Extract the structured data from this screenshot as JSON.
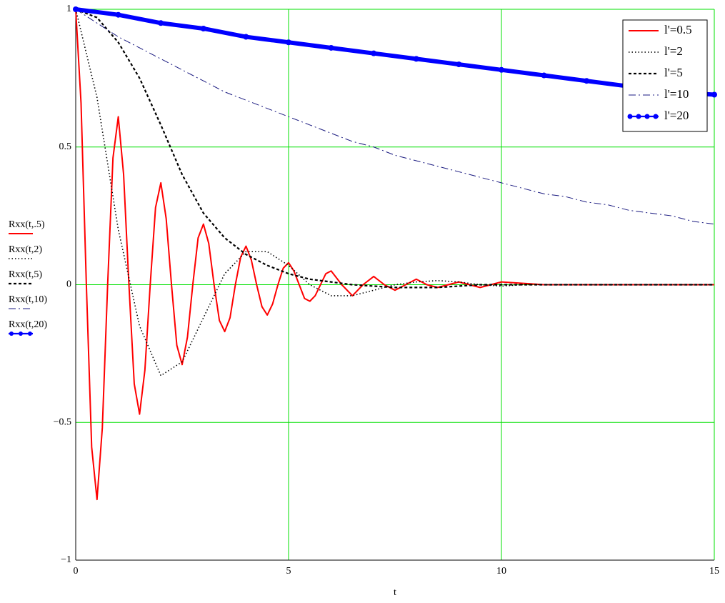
{
  "chart_data": {
    "type": "line",
    "x_label": "t",
    "xlim": [
      0,
      15
    ],
    "xticks": [
      0,
      5,
      10,
      15
    ],
    "ylim": [
      -1,
      1
    ],
    "yticks": [
      {
        "value": -1,
        "label": "−1"
      },
      {
        "value": -0.5,
        "label": "−0.5"
      },
      0,
      0.5,
      1
    ],
    "grid": true,
    "grid_color": "#00e000",
    "legend": "upper right",
    "series": [
      {
        "name": "l'=0.5",
        "expression": "Rxx(t,.5)",
        "color": "#ff0000",
        "line_style": "solid",
        "width": 2,
        "x": [
          0,
          0.125,
          0.25,
          0.375,
          0.5,
          0.625,
          0.75,
          0.875,
          1,
          1.125,
          1.25,
          1.375,
          1.5,
          1.625,
          1.75,
          1.875,
          2,
          2.125,
          2.25,
          2.375,
          2.5,
          2.625,
          2.75,
          2.875,
          3,
          3.125,
          3.25,
          3.375,
          3.5,
          3.625,
          3.75,
          3.875,
          4,
          4.125,
          4.25,
          4.375,
          4.5,
          4.625,
          4.75,
          4.875,
          5,
          5.125,
          5.25,
          5.375,
          5.5,
          5.625,
          5.75,
          5.875,
          6,
          6.25,
          6.5,
          6.75,
          7,
          7.25,
          7.5,
          7.75,
          8,
          8.25,
          8.5,
          8.75,
          9,
          9.25,
          9.5,
          9.75,
          10,
          11,
          12,
          13,
          14,
          15
        ],
        "values": [
          1,
          0.66,
          0,
          -0.59,
          -0.78,
          -0.52,
          0,
          0.46,
          0.61,
          0.4,
          0,
          -0.36,
          -0.47,
          -0.31,
          0,
          0.28,
          0.37,
          0.24,
          0,
          -0.22,
          -0.29,
          -0.19,
          0,
          0.17,
          0.22,
          0.15,
          0,
          -0.13,
          -0.17,
          -0.12,
          0,
          0.1,
          0.14,
          0.09,
          0,
          -0.08,
          -0.11,
          -0.07,
          0,
          0.06,
          0.08,
          0.05,
          0,
          -0.05,
          -0.06,
          -0.04,
          0,
          0.04,
          0.05,
          0,
          -0.04,
          0,
          0.03,
          0,
          -0.02,
          0,
          0.02,
          0,
          -0.01,
          0,
          0.01,
          0,
          -0.01,
          0,
          0.01,
          0,
          0,
          0,
          0,
          0
        ]
      },
      {
        "name": "l'=2",
        "expression": "Rxx(t,2)",
        "color": "#000000",
        "line_style": "dotted",
        "width": 1.6,
        "x": [
          0,
          0.5,
          1,
          1.5,
          2,
          2.5,
          3,
          3.5,
          4,
          4.5,
          5,
          5.5,
          6,
          6.5,
          7,
          7.5,
          8,
          8.5,
          9,
          9.5,
          10,
          10.5,
          11,
          11.5,
          12,
          12.5,
          13,
          13.5,
          14,
          14.5,
          15
        ],
        "values": [
          1,
          0.68,
          0.2,
          -0.15,
          -0.33,
          -0.28,
          -0.12,
          0.04,
          0.12,
          0.12,
          0.07,
          0,
          -0.04,
          -0.04,
          -0.02,
          0,
          0.01,
          0.015,
          0.01,
          0,
          -0.005,
          0,
          0,
          0,
          0,
          0,
          0,
          0,
          0,
          0,
          0
        ]
      },
      {
        "name": "l'=5",
        "expression": "Rxx(t,5)",
        "color": "#000000",
        "line_style": "dashed",
        "width": 2.2,
        "x": [
          0,
          0.5,
          1,
          1.5,
          2,
          2.5,
          3,
          3.5,
          4,
          4.5,
          5,
          5.5,
          6,
          6.5,
          7,
          7.5,
          8,
          8.5,
          9,
          9.5,
          10,
          10.5,
          11,
          11.5,
          12,
          12.5,
          13,
          13.5,
          14,
          14.5,
          15
        ],
        "values": [
          1,
          0.97,
          0.88,
          0.75,
          0.58,
          0.4,
          0.26,
          0.17,
          0.11,
          0.07,
          0.04,
          0.02,
          0.01,
          0,
          -0.005,
          -0.01,
          -0.01,
          -0.01,
          -0.005,
          0,
          0,
          0,
          0,
          0,
          0,
          0,
          0,
          0,
          0,
          0,
          0
        ]
      },
      {
        "name": "l'=10",
        "expression": "Rxx(t,10)",
        "color": "#1a1a80",
        "line_style": "dashdot",
        "width": 1,
        "x": [
          0,
          0.5,
          1,
          1.5,
          2,
          2.5,
          3,
          3.5,
          4,
          4.5,
          5,
          5.5,
          6,
          6.5,
          7,
          7.5,
          8,
          8.5,
          9,
          9.5,
          10,
          10.5,
          11,
          11.5,
          12,
          12.5,
          13,
          13.5,
          14,
          14.5,
          15
        ],
        "values": [
          1,
          0.95,
          0.9,
          0.86,
          0.82,
          0.78,
          0.74,
          0.7,
          0.67,
          0.64,
          0.61,
          0.58,
          0.55,
          0.52,
          0.5,
          0.47,
          0.45,
          0.43,
          0.41,
          0.39,
          0.37,
          0.35,
          0.33,
          0.32,
          0.3,
          0.29,
          0.27,
          0.26,
          0.25,
          0.23,
          0.22
        ]
      },
      {
        "name": "l'=20",
        "expression": "Rxx(t,20)",
        "color": "#0000ff",
        "line_style": "solid",
        "width": 6,
        "markers": true,
        "x": [
          0,
          1,
          2,
          3,
          4,
          5,
          6,
          7,
          8,
          9,
          10,
          11,
          12,
          13,
          14,
          15
        ],
        "values": [
          1,
          0.98,
          0.95,
          0.93,
          0.9,
          0.88,
          0.86,
          0.84,
          0.82,
          0.8,
          0.78,
          0.76,
          0.74,
          0.72,
          0.7,
          0.69
        ]
      }
    ]
  }
}
